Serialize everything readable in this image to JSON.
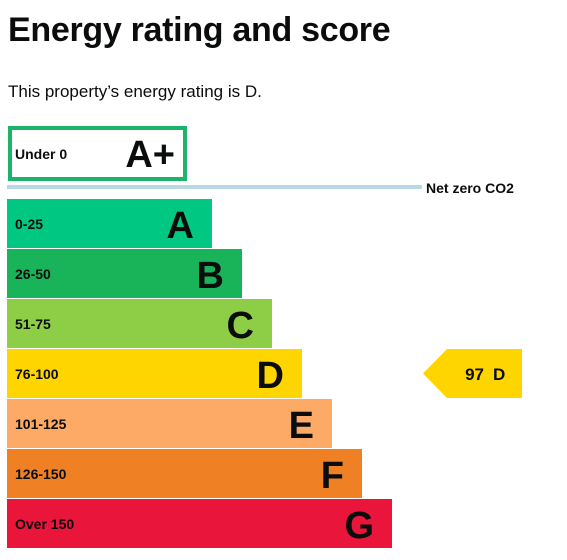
{
  "page": {
    "title": "Energy rating and score",
    "intro": "This property’s energy rating is D."
  },
  "chart_data": {
    "type": "bar",
    "orientation": "horizontal",
    "title": "",
    "categories": [
      "A",
      "B",
      "C",
      "D",
      "E",
      "F",
      "G"
    ],
    "range_labels": [
      "0-25",
      "26-50",
      "51-75",
      "76-100",
      "101-125",
      "126-150",
      "Over 150"
    ],
    "values": [
      1,
      2,
      3,
      4,
      5,
      6,
      7
    ],
    "colors": [
      "#00c781",
      "#19b459",
      "#8dce46",
      "#ffd500",
      "#fcaa65",
      "#ef8023",
      "#e9153b"
    ],
    "plus_band": {
      "range_label": "Under 0",
      "letter": "A+",
      "border_color": "#1bb46a",
      "value": 0.5
    },
    "net_zero": {
      "label": "Net zero CO2",
      "line_color": "#b8d8e3"
    },
    "current_rating": {
      "score": "97",
      "letter": "D",
      "color": "#ffd500"
    },
    "xlabel": "",
    "ylabel": "",
    "grid": false,
    "legend": "none"
  }
}
